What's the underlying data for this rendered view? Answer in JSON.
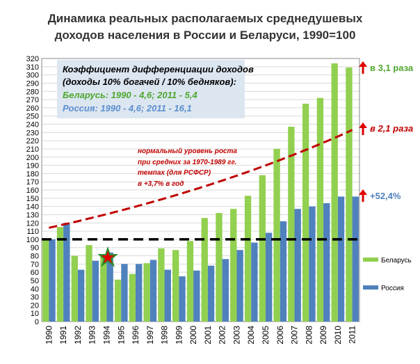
{
  "chart_data": {
    "type": "bar",
    "title": "Динамика реальных располагаемых среднедушевых",
    "subtitle": "доходов населения в России и Беларуси, 1990=100",
    "categories": [
      "1990",
      "1991",
      "1992",
      "1993",
      "1994",
      "1995",
      "1996",
      "1997",
      "1998",
      "1999",
      "2000",
      "2001",
      "2002",
      "2003",
      "2004",
      "2005",
      "2006",
      "2007",
      "2008",
      "2009",
      "2010",
      "2011"
    ],
    "series": [
      {
        "name": "Беларусь",
        "color": "#92d050",
        "values": [
          100,
          115,
          80,
          93,
          80,
          51,
          58,
          71,
          89,
          87,
          98,
          126,
          132,
          137,
          153,
          178,
          210,
          237,
          265,
          272,
          314,
          309
        ]
      },
      {
        "name": "Россия",
        "color": "#4f81bd",
        "values": [
          100,
          120,
          63,
          74,
          84,
          70,
          70,
          75,
          63,
          55,
          62,
          68,
          76,
          87,
          96,
          108,
          122,
          137,
          140,
          144,
          152,
          152
        ]
      }
    ],
    "trend_line": {
      "color": "#c00000",
      "values": [
        114,
        118,
        122,
        126.3,
        130.6,
        135.1,
        139.8,
        144.7,
        149.7,
        154.8,
        160.2,
        165.7,
        171.5,
        177.4,
        183.5,
        189.9,
        196.5,
        203.3,
        210.3,
        217.6,
        225.1,
        233
      ]
    },
    "reference_line": 100,
    "ylim": [
      0,
      320
    ],
    "yticks": [
      0,
      10,
      20,
      30,
      40,
      50,
      60,
      70,
      80,
      90,
      100,
      110,
      120,
      130,
      140,
      150,
      160,
      170,
      180,
      190,
      200,
      210,
      220,
      230,
      240,
      250,
      260,
      270,
      280,
      290,
      300,
      310,
      320
    ],
    "grid": true,
    "legend_position": "right",
    "notes": {
      "box": [
        "Коэффициент дифференциации доходов",
        "(доходы 10% богачей / 10% бедняков):",
        "Беларусь: 1990 - 4,6; 2011 - 5,4",
        "Россия: 1990 - 4,6; 2011 - 16,1"
      ],
      "trend": [
        "нормальный уровень роста",
        "при средних за 1970-1989 гг.",
        "темпах (для РСФСР)",
        "в +3,7% в год"
      ],
      "right": [
        "в 3,1 раза",
        "в 2,1 раза",
        "+52,4%"
      ]
    }
  }
}
